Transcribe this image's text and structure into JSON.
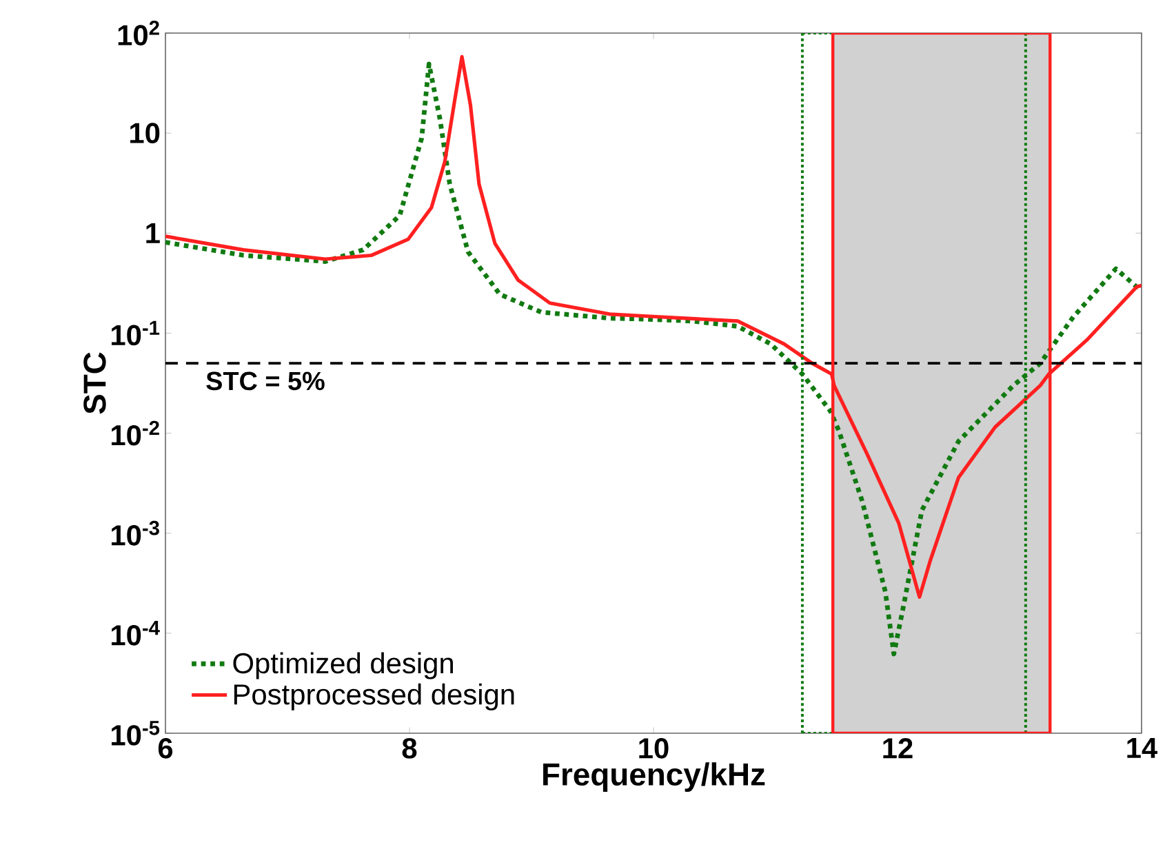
{
  "chart_data": {
    "type": "line",
    "xlabel": "Frequency/kHz",
    "ylabel": "STC",
    "log": "y",
    "legend": "bottom left",
    "xlim": [
      6,
      14
    ],
    "xticks": [
      6,
      8,
      10,
      12,
      14
    ],
    "ylim": [
      1e-05,
      100
    ],
    "yticks": [
      {
        "value": 100,
        "label": "10$^{2}$"
      },
      10,
      1,
      {
        "value": 0.1,
        "label": "10$^{-1}$"
      },
      {
        "value": 0.01,
        "label": "10$^{-2}$"
      },
      {
        "value": 0.001,
        "label": "10$^{-3}$"
      },
      {
        "value": 0.0001,
        "label": "10$^{-4}$"
      },
      {
        "value": 1e-05,
        "label": "10$^{-5}$"
      }
    ],
    "series": [
      {
        "name": "Optimized design",
        "color": "#117a11",
        "line_style": "dotted",
        "x": [
          6,
          6.64,
          7.31,
          7.62,
          7.92,
          8.1,
          8.16,
          8.25,
          8.33,
          8.48,
          8.74,
          9.08,
          9.64,
          9.94,
          10.32,
          10.69,
          10.96,
          11.22,
          11.45,
          11.52,
          11.71,
          11.9,
          11.97,
          12.05,
          12.2,
          12.5,
          12.95,
          13.17,
          13.44,
          13.79,
          13.96,
          14
        ],
        "values": [
          0.81,
          0.6,
          0.52,
          0.68,
          1.5,
          8.9,
          49,
          13.8,
          3.1,
          0.65,
          0.245,
          0.162,
          0.141,
          0.138,
          0.132,
          0.117,
          0.078,
          0.039,
          0.0166,
          0.0105,
          0.0021,
          0.00026,
          6.2e-05,
          0.00019,
          0.0017,
          0.0083,
          0.03,
          0.05,
          0.145,
          0.44,
          0.29,
          0.28
        ]
      },
      {
        "name": "Postprocessed design",
        "color": "#ff2020",
        "line_style": "solid",
        "x": [
          6,
          6.64,
          7.31,
          7.69,
          7.99,
          8.18,
          8.29,
          8.37,
          8.43,
          8.5,
          8.57,
          8.7,
          8.89,
          9.15,
          9.64,
          9.94,
          10.69,
          11.07,
          11.3,
          11.46,
          11.48,
          11.75,
          12.01,
          12.18,
          12.27,
          12.5,
          12.8,
          13.17,
          13.24,
          13.55,
          13.96,
          14
        ],
        "values": [
          0.93,
          0.68,
          0.55,
          0.6,
          0.87,
          1.8,
          5.2,
          21,
          58,
          19,
          3.1,
          0.79,
          0.34,
          0.2,
          0.155,
          0.148,
          0.132,
          0.078,
          0.05,
          0.039,
          0.03,
          0.0062,
          0.00126,
          0.00023,
          0.00054,
          0.0036,
          0.0115,
          0.03,
          0.039,
          0.085,
          0.29,
          0.3
        ]
      }
    ],
    "ref_lines": [
      {
        "axis": "y",
        "value": 0.05,
        "label": "STC = 5%",
        "color": "#000000",
        "line_style": "dashed"
      },
      {
        "axis": "x",
        "value": 11.22,
        "color": "#117a11",
        "line_style": "dotted"
      },
      {
        "axis": "x",
        "value": 13.05,
        "color": "#117a11",
        "line_style": "dotted"
      },
      {
        "axis": "x",
        "value": 11.47,
        "color": "#ff2020",
        "line_style": "solid"
      },
      {
        "axis": "x",
        "value": 13.25,
        "color": "#ff2020",
        "line_style": "solid"
      }
    ],
    "bands": [
      {
        "axis": "x",
        "from": 11.47,
        "to": 13.25,
        "color": "#d1d1d1"
      }
    ]
  }
}
